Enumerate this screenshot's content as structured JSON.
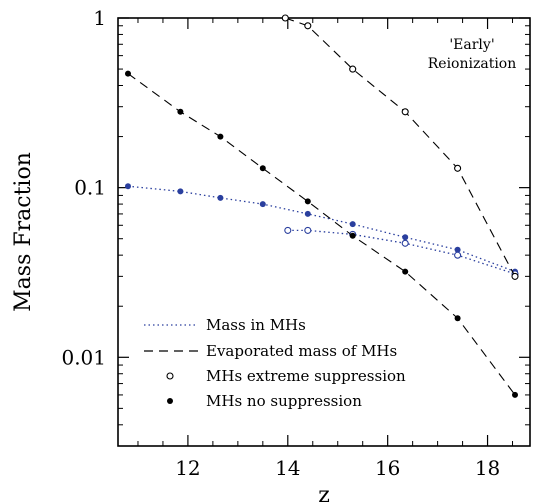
{
  "chart_data": {
    "type": "line",
    "title": "",
    "xlabel": "z",
    "ylabel": "Mass Fraction",
    "xlim": [
      10.6,
      18.85
    ],
    "ylim": [
      0.003,
      1.0
    ],
    "yscale": "log",
    "grid": false,
    "legend_position": "bottom-left",
    "x_ticks": [
      {
        "value": 12,
        "label": "12"
      },
      {
        "value": 14,
        "label": "14"
      },
      {
        "value": 16,
        "label": "16"
      },
      {
        "value": 18,
        "label": "18"
      }
    ],
    "y_ticks": [
      {
        "value": 0.01,
        "label": "0.01"
      },
      {
        "value": 0.1,
        "label": "0.1"
      },
      {
        "value": 1,
        "label": "1"
      }
    ],
    "annotation": {
      "line1": "'Early'",
      "line2": "Reionization"
    },
    "series": [
      {
        "name": "mass-in-mhs-no-suppression",
        "line": "dotted",
        "marker": "filled",
        "color": "#2a3f9e",
        "x": [
          10.8,
          11.85,
          12.65,
          13.5,
          14.4,
          15.3,
          16.35,
          17.4,
          18.55
        ],
        "y": [
          0.102,
          0.095,
          0.087,
          0.08,
          0.07,
          0.061,
          0.051,
          0.043,
          0.032
        ]
      },
      {
        "name": "mass-in-mhs-extreme-suppression",
        "line": "dotted",
        "marker": "open",
        "color": "#2a3f9e",
        "x": [
          14.0,
          14.4,
          15.3,
          16.35,
          17.4,
          18.55
        ],
        "y": [
          0.056,
          0.056,
          0.053,
          0.047,
          0.04,
          0.031
        ]
      },
      {
        "name": "evaporated-no-suppression",
        "line": "dashed",
        "marker": "filled",
        "color": "#000000",
        "x": [
          10.8,
          11.85,
          12.65,
          13.5,
          14.4,
          15.3,
          16.35,
          17.4,
          18.55
        ],
        "y": [
          0.47,
          0.28,
          0.2,
          0.13,
          0.083,
          0.052,
          0.032,
          0.017,
          0.006
        ]
      },
      {
        "name": "evaporated-extreme-suppression",
        "line": "dashed",
        "marker": "open",
        "color": "#000000",
        "x": [
          13.95,
          14.4,
          15.3,
          16.35,
          17.4,
          18.55
        ],
        "y": [
          1.0,
          0.9,
          0.5,
          0.28,
          0.13,
          0.03
        ]
      }
    ],
    "legend": [
      {
        "label": "Mass in MHs",
        "kind": "dotted-line"
      },
      {
        "label": "Evaporated mass of MHs",
        "kind": "dashed-line"
      },
      {
        "label": "MHs extreme suppression",
        "kind": "open-marker"
      },
      {
        "label": "MHs no suppression",
        "kind": "filled-marker"
      }
    ]
  }
}
